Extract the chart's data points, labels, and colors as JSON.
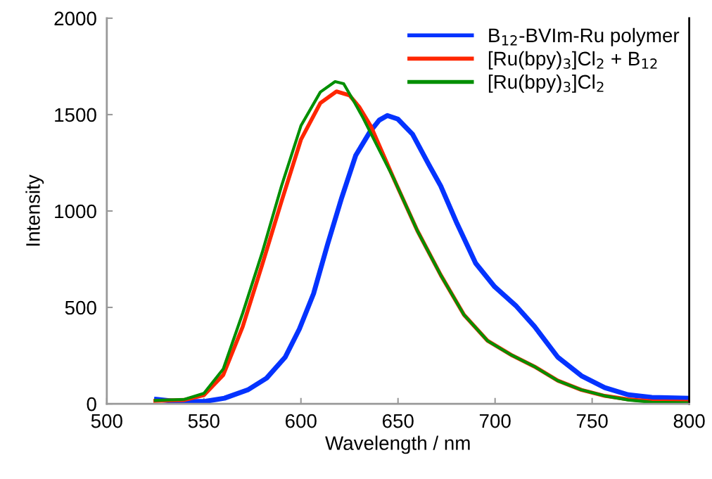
{
  "chart_data": {
    "type": "line",
    "xlabel": "Wavelength / nm",
    "ylabel": "Intensity",
    "xlim": [
      500,
      800
    ],
    "xticks": [
      500,
      550,
      600,
      650,
      700,
      750,
      800
    ],
    "ylim": [
      0,
      2000
    ],
    "yticks": [
      0,
      500,
      1000,
      1500,
      2000
    ],
    "grid": false,
    "legend": "top right",
    "marker": "none",
    "line_style": "solid",
    "series": [
      {
        "name": "B$_{12}$-BVIm-Ru polymer",
        "color": "#0433ff",
        "x": [
          525.6,
          536.5,
          550.9,
          560.6,
          572.6,
          582.3,
          591.9,
          599.2,
          606.5,
          613.7,
          621,
          628.2,
          635.5,
          640.3,
          644.5,
          649.9,
          657.5,
          665.9,
          672,
          680.4,
          690,
          699.8,
          710.6,
          720.3,
          732.3,
          744.5,
          756.5,
          768.6,
          780.7,
          799.4
        ],
        "values": [
          23,
          11,
          13,
          29,
          72,
          133,
          242,
          388,
          571,
          826,
          1069,
          1288,
          1410,
          1471,
          1495,
          1477,
          1398,
          1240,
          1130,
          935,
          729,
          607,
          510,
          401,
          242,
          145,
          84,
          47,
          33,
          29
        ]
      },
      {
        "name": "[Ru(bpy)$_{3}$]Cl$_{2}$ + B$_{12}$",
        "color": "#ff2600",
        "x": [
          525,
          540,
          550,
          560,
          570,
          580,
          590,
          600,
          610,
          618.3,
          625,
          630,
          636,
          647.8,
          659.9,
          672,
          684,
          696.1,
          708.2,
          720.3,
          732.3,
          744.5,
          756.5,
          768.6,
          780.7,
          798.8
        ],
        "values": [
          15,
          20,
          45,
          150,
          400,
          720,
          1050,
          1370,
          1560,
          1620,
          1600,
          1540,
          1440,
          1168,
          899,
          668,
          461,
          327,
          254,
          193,
          120,
          72,
          41,
          23,
          13,
          10
        ]
      },
      {
        "name": "[Ru(bpy)$_{3}$]Cl$_{2}$",
        "color": "#008f00",
        "x": [
          525,
          540,
          550,
          560,
          570,
          580,
          590,
          600,
          610,
          617.6,
          622,
          627.3,
          632,
          639.4,
          644.2,
          647.8,
          659.9,
          672,
          684,
          696.1,
          708.2,
          720.3,
          732.3,
          744.5,
          756.5,
          768.6,
          780.7,
          798.8
        ],
        "values": [
          17,
          23,
          54,
          181,
          470,
          783,
          1130,
          1442,
          1617,
          1671,
          1660,
          1568,
          1483,
          1335,
          1240,
          1168,
          899,
          668,
          461,
          327,
          254,
          193,
          120,
          72,
          41,
          20,
          8,
          6
        ]
      }
    ]
  }
}
